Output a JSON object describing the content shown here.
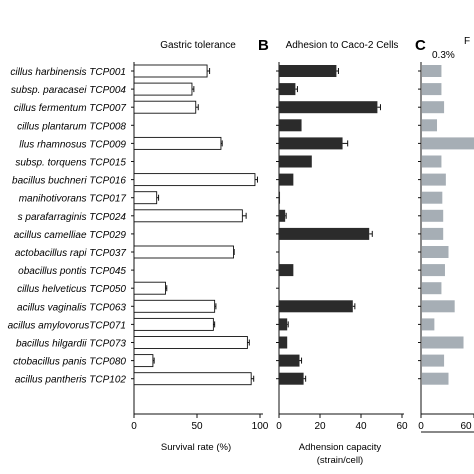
{
  "strains": [
    "cillus harbinensis TCP001",
    "subsp. paracasei TCP004",
    "cillus fermentum TCP007",
    "cillus plantarum TCP008",
    "llus  rhamnosus TCP009",
    "subsp. torquens TCP015",
    "bacillus buchneri TCP016",
    "manihotivorans TCP017",
    "s parafarraginis TCP024",
    "acillus camelliae TCP029",
    "actobacillus rapi TCP037",
    "obacillus pontis TCP045",
    "cillus helveticus TCP050",
    "acillus vaginalis TCP063",
    "acillus amylovorusTCP071",
    "bacillus hilgardii TCP073",
    "ctobacillus panis TCP080",
    "acillus pantheris TCP102"
  ],
  "chart_data": [
    {
      "type": "bar",
      "orientation": "horizontal",
      "title": "Gastric tolerance",
      "xlabel": "Survival rate (%)",
      "xlim": [
        0,
        100
      ],
      "ticks": [
        "0",
        "50",
        "100"
      ],
      "values": [
        58,
        46,
        49,
        0,
        69,
        0,
        96,
        18,
        86,
        0,
        79,
        0,
        25,
        64,
        63,
        90,
        15,
        93
      ],
      "errors": [
        2,
        1.5,
        2,
        0,
        1,
        0,
        2,
        1.5,
        3,
        0,
        0.5,
        0,
        1,
        1,
        1,
        1.5,
        1,
        2
      ],
      "bar_color": "#ffffff"
    },
    {
      "type": "bar",
      "orientation": "horizontal",
      "panel_label": "B",
      "title": "Adhesion to Caco-2 Cells",
      "xlabel": "Adhension capacity",
      "xlabel2": "(strain/cell)",
      "xlim": [
        0,
        60
      ],
      "ticks": [
        "0",
        "20",
        "40",
        "60"
      ],
      "values": [
        28,
        8,
        48,
        11,
        31,
        16,
        7,
        0.5,
        3,
        44,
        0,
        7,
        0,
        36,
        4,
        4,
        10,
        12
      ],
      "errors": [
        1,
        1,
        1.5,
        0,
        2.5,
        0,
        0,
        0,
        0.5,
        1.5,
        0,
        0,
        0,
        1,
        0.5,
        0,
        1,
        1
      ],
      "bar_color": "#2b2b2b"
    },
    {
      "type": "bar",
      "orientation": "horizontal",
      "panel_label": "C",
      "annotation": "0.3%",
      "ticks": [
        "0",
        "60"
      ],
      "values": [
        22,
        22,
        25,
        17,
        70,
        22,
        27,
        23,
        24,
        24,
        30,
        26,
        22,
        37,
        14,
        47,
        25,
        30
      ],
      "bar_color": "#a6aeb5"
    }
  ]
}
